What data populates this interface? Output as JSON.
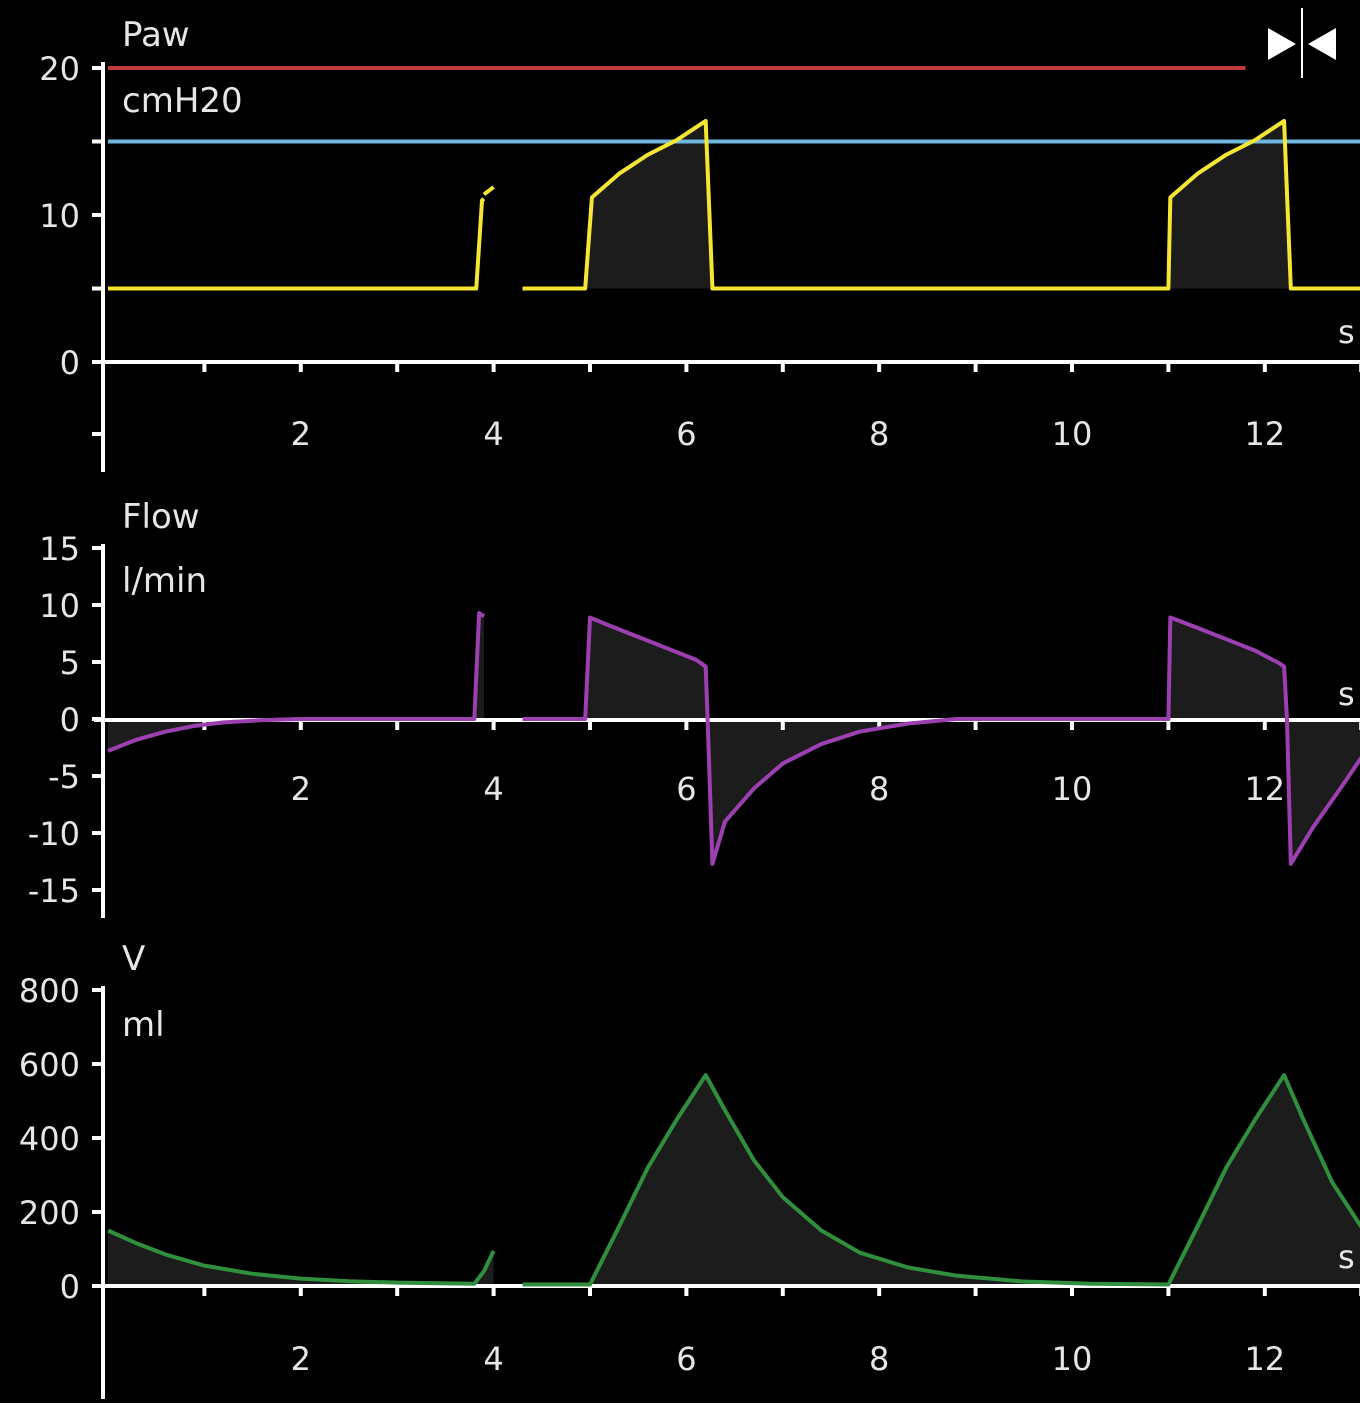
{
  "colors": {
    "background": "#000000",
    "axis": "#ffffff",
    "text": "#e6e6e6",
    "pressure": "#f4e633",
    "flow": "#9c3fb0",
    "volume": "#2f8f3c",
    "alarm_high": "#c0383a",
    "pressure_target": "#6fb6e0",
    "fill": "#1c1c1c"
  },
  "icons": {
    "freeze": "freeze-icon"
  },
  "chart_data": [
    {
      "type": "line",
      "id": "paw",
      "name": "Paw",
      "unit": "cmH20",
      "time_unit": "s",
      "ylim": [
        0,
        20
      ],
      "yticks": [
        0,
        10,
        20
      ],
      "xlim": [
        0,
        13
      ],
      "xticks": [
        2,
        4,
        6,
        8,
        10,
        12
      ],
      "reference_lines": [
        {
          "value": 20,
          "color": "#c0383a",
          "x_end": 11.8
        },
        {
          "value": 15,
          "color": "#6fb6e0"
        }
      ],
      "series": [
        {
          "color": "#f4e633",
          "x": [
            0.0,
            3.82,
            3.88,
            3.9
          ],
          "y": [
            5,
            5,
            11,
            11.1
          ]
        },
        {
          "color": "#f4e633",
          "x": [
            3.9,
            4.0
          ],
          "y": [
            11.4,
            11.9
          ]
        },
        {
          "color": "#f4e633",
          "x": [
            4.3,
            4.95,
            5.02,
            5.3,
            5.6,
            5.9,
            6.2,
            6.27,
            11.0,
            11.02,
            11.3,
            11.6,
            11.9,
            12.2,
            12.27,
            13.0
          ],
          "y": [
            5,
            5,
            11.2,
            12.8,
            14.1,
            15.1,
            16.4,
            5,
            5,
            11.2,
            12.8,
            14.1,
            15.1,
            16.4,
            5,
            5
          ]
        }
      ]
    },
    {
      "type": "line",
      "id": "flow",
      "name": "Flow",
      "unit": "l/min",
      "time_unit": "s",
      "ylim": [
        -15,
        15
      ],
      "yticks": [
        -15,
        -10,
        -5,
        0,
        5,
        10,
        15
      ],
      "xlim": [
        0,
        13
      ],
      "xticks": [
        2,
        4,
        6,
        8,
        10,
        12
      ],
      "series": [
        {
          "color": "#9c3fb0",
          "x": [
            0.0,
            0.3,
            0.6,
            0.9,
            1.2,
            1.6,
            2.0,
            2.5,
            3.8,
            3.85,
            3.9
          ],
          "y": [
            -2.8,
            -1.8,
            -1.1,
            -0.6,
            -0.3,
            -0.1,
            0,
            0,
            0,
            9.3,
            9.0
          ]
        },
        {
          "color": "#9c3fb0",
          "x": [
            4.3,
            4.95,
            5.0,
            5.2,
            5.5,
            5.8,
            6.1,
            6.2,
            6.22,
            6.27,
            6.4,
            6.7,
            7.0,
            7.4,
            7.8,
            8.3,
            8.8,
            9.5,
            11.0,
            11.02,
            11.3,
            11.6,
            11.9,
            12.15,
            12.2,
            12.23,
            12.27,
            12.5,
            12.8,
            13.0
          ],
          "y": [
            0,
            0,
            8.9,
            8.2,
            7.2,
            6.2,
            5.2,
            4.6,
            0,
            -12.7,
            -9.0,
            -6.1,
            -3.9,
            -2.2,
            -1.1,
            -0.4,
            0,
            0,
            0,
            8.9,
            8.0,
            7.0,
            6.0,
            4.9,
            4.6,
            0,
            -12.7,
            -9.5,
            -5.9,
            -3.4
          ]
        }
      ]
    },
    {
      "type": "line",
      "id": "volume",
      "name": "V",
      "unit": "ml",
      "time_unit": "s",
      "ylim": [
        0,
        800
      ],
      "yticks": [
        0,
        200,
        400,
        600,
        800
      ],
      "xlim": [
        0,
        13
      ],
      "xticks": [
        2,
        4,
        6,
        8,
        10,
        12
      ],
      "series": [
        {
          "color": "#2f8f3c",
          "x": [
            0.0,
            0.3,
            0.6,
            1.0,
            1.5,
            2.0,
            2.5,
            3.0,
            3.8,
            3.9,
            4.0
          ],
          "y": [
            150,
            115,
            85,
            55,
            33,
            20,
            13,
            9,
            6,
            40,
            95
          ]
        },
        {
          "color": "#2f8f3c",
          "x": [
            4.3,
            5.0,
            5.3,
            5.6,
            5.9,
            6.2,
            6.4,
            6.7,
            7.0,
            7.4,
            7.8,
            8.3,
            8.8,
            9.5,
            10.2,
            11.0,
            11.3,
            11.6,
            11.9,
            12.2,
            12.4,
            12.7,
            13.0
          ],
          "y": [
            4,
            4,
            160,
            320,
            450,
            570,
            475,
            340,
            240,
            150,
            90,
            50,
            28,
            12,
            6,
            4,
            160,
            320,
            450,
            570,
            450,
            280,
            160
          ]
        }
      ]
    }
  ]
}
